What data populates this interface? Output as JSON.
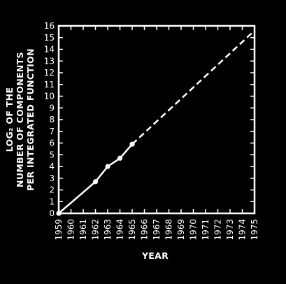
{
  "chart_data": {
    "type": "line",
    "xlabel": "YEAR",
    "ylabel_lines": [
      "LOG₂ OF THE",
      "NUMBER OF COMPONENTS",
      "PER INTEGRATED FUNCTION"
    ],
    "xlim": [
      1959,
      1975
    ],
    "ylim": [
      0,
      16
    ],
    "x_ticks": [
      1959,
      1960,
      1961,
      1962,
      1963,
      1964,
      1965,
      1966,
      1967,
      1968,
      1969,
      1970,
      1971,
      1972,
      1973,
      1974,
      1975
    ],
    "x_tick_labels": [
      "1959",
      "1960",
      "1961",
      "1962",
      "1963",
      "1964",
      "1965",
      "1966",
      "1967",
      "1968",
      "1969",
      "1970",
      "1971",
      "1972",
      "1973",
      "1974",
      "1975"
    ],
    "y_ticks": [
      0,
      1,
      2,
      3,
      4,
      5,
      6,
      7,
      8,
      9,
      10,
      11,
      12,
      13,
      14,
      15,
      16
    ],
    "y_tick_labels": [
      "0",
      "1",
      "2",
      "3",
      "4",
      "5",
      "6",
      "7",
      "8",
      "9",
      "10",
      "11",
      "12",
      "13",
      "14",
      "15",
      "16"
    ],
    "grid": false,
    "series": [
      {
        "style": "solid-with-markers",
        "x": [
          1959,
          1962,
          1963,
          1964,
          1965
        ],
        "y": [
          0,
          2.7,
          4.0,
          4.7,
          5.9
        ]
      },
      {
        "style": "dashed-extrapolation",
        "x": [
          1965,
          1975
        ],
        "y": [
          5.9,
          15.6
        ]
      }
    ]
  }
}
